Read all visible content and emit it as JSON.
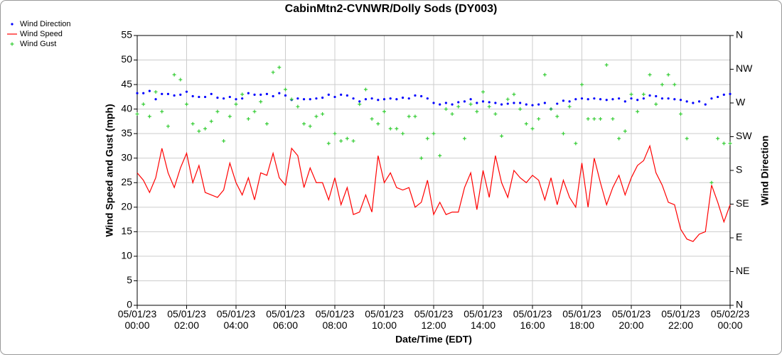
{
  "chart_data": {
    "type": "combo",
    "title": "CabinMtn2-CVNWR/Dolly Sods (DY003)",
    "xlabel": "Date/Time (EDT)",
    "ylabel": "Wind Speed and Gust (mph)",
    "y2label": "Wind Direction",
    "x": [
      "05/01/23 00:00",
      "05/01/23 00:15",
      "05/01/23 00:30",
      "05/01/23 00:45",
      "05/01/23 01:00",
      "05/01/23 01:15",
      "05/01/23 01:30",
      "05/01/23 01:45",
      "05/01/23 02:00",
      "05/01/23 02:15",
      "05/01/23 02:30",
      "05/01/23 02:45",
      "05/01/23 03:00",
      "05/01/23 03:15",
      "05/01/23 03:30",
      "05/01/23 03:45",
      "05/01/23 04:00",
      "05/01/23 04:15",
      "05/01/23 04:30",
      "05/01/23 04:45",
      "05/01/23 05:00",
      "05/01/23 05:15",
      "05/01/23 05:30",
      "05/01/23 05:45",
      "05/01/23 06:00",
      "05/01/23 06:15",
      "05/01/23 06:30",
      "05/01/23 06:45",
      "05/01/23 07:00",
      "05/01/23 07:15",
      "05/01/23 07:30",
      "05/01/23 07:45",
      "05/01/23 08:00",
      "05/01/23 08:15",
      "05/01/23 08:30",
      "05/01/23 08:45",
      "05/01/23 09:00",
      "05/01/23 09:15",
      "05/01/23 09:30",
      "05/01/23 09:45",
      "05/01/23 10:00",
      "05/01/23 10:15",
      "05/01/23 10:30",
      "05/01/23 10:45",
      "05/01/23 11:00",
      "05/01/23 11:15",
      "05/01/23 11:30",
      "05/01/23 11:45",
      "05/01/23 12:00",
      "05/01/23 12:15",
      "05/01/23 12:30",
      "05/01/23 12:45",
      "05/01/23 13:00",
      "05/01/23 13:15",
      "05/01/23 13:30",
      "05/01/23 13:45",
      "05/01/23 14:00",
      "05/01/23 14:15",
      "05/01/23 14:30",
      "05/01/23 14:45",
      "05/01/23 15:00",
      "05/01/23 15:15",
      "05/01/23 15:30",
      "05/01/23 15:45",
      "05/01/23 16:00",
      "05/01/23 16:15",
      "05/01/23 16:30",
      "05/01/23 16:45",
      "05/01/23 17:00",
      "05/01/23 17:15",
      "05/01/23 17:30",
      "05/01/23 17:45",
      "05/01/23 18:00",
      "05/01/23 18:15",
      "05/01/23 18:30",
      "05/01/23 18:45",
      "05/01/23 19:00",
      "05/01/23 19:15",
      "05/01/23 19:30",
      "05/01/23 19:45",
      "05/01/23 20:00",
      "05/01/23 20:15",
      "05/01/23 20:30",
      "05/01/23 20:45",
      "05/01/23 21:00",
      "05/01/23 21:15",
      "05/01/23 21:30",
      "05/01/23 21:45",
      "05/01/23 22:00",
      "05/01/23 22:15",
      "05/01/23 22:30",
      "05/01/23 22:45",
      "05/01/23 23:00",
      "05/01/23 23:15",
      "05/01/23 23:30",
      "05/01/23 23:45",
      "05/02/23 00:00"
    ],
    "series": [
      {
        "name": "Wind Direction",
        "color": "#0000ff",
        "style": "dots",
        "axis": "y2",
        "values": [
          283,
          283,
          286,
          275,
          282,
          282,
          280,
          281,
          285,
          279,
          278,
          278,
          282,
          277,
          276,
          278,
          275,
          276,
          283,
          281,
          281,
          282,
          279,
          283,
          280,
          274,
          276,
          275,
          275,
          276,
          277,
          281,
          278,
          281,
          280,
          276,
          272,
          275,
          276,
          274,
          275,
          276,
          275,
          277,
          276,
          280,
          279,
          276,
          270,
          268,
          270,
          268,
          271,
          272,
          275,
          270,
          272,
          271,
          270,
          268,
          269,
          270,
          270,
          268,
          267,
          268,
          270,
          262,
          269,
          273,
          272,
          275,
          276,
          275,
          276,
          275,
          274,
          275,
          276,
          272,
          276,
          274,
          276,
          280,
          279,
          276,
          276,
          275,
          274,
          272,
          270,
          272,
          268,
          276,
          278,
          281,
          282
        ]
      },
      {
        "name": "Wind Speed",
        "color": "#ff0000",
        "style": "line",
        "values": [
          27,
          25.5,
          23,
          26,
          32,
          27,
          24,
          28,
          31,
          25,
          28.5,
          23,
          22.5,
          22,
          23.5,
          29,
          25,
          22.5,
          26,
          21.5,
          27,
          26.5,
          31,
          26,
          24.5,
          32,
          30.5,
          24,
          28,
          25,
          25,
          21.5,
          26,
          20.5,
          24,
          18.5,
          19,
          22.5,
          19,
          30.5,
          25,
          27,
          24,
          23.5,
          24,
          20,
          21,
          25.5,
          18.5,
          21,
          18.5,
          19,
          19,
          24,
          27,
          19.5,
          27.5,
          22,
          30.5,
          25,
          22,
          27.5,
          26,
          25,
          26.5,
          25.5,
          21.5,
          26,
          20.5,
          25.5,
          22,
          20,
          29,
          20,
          30,
          25,
          20.5,
          24,
          26.5,
          22.5,
          26,
          28.5,
          29.5,
          32.5,
          27,
          24.5,
          21,
          20.5,
          15.5,
          13.5,
          13,
          14.5,
          15,
          24.5,
          21,
          17,
          20.5
        ]
      },
      {
        "name": "Wind Gust",
        "color": "#33cc33",
        "style": "plus",
        "values": [
          39,
          41,
          38.5,
          43.5,
          39.5,
          36.5,
          47,
          46,
          41,
          37,
          35.5,
          36,
          37.5,
          39.5,
          33.5,
          38.5,
          41,
          43,
          38,
          39.5,
          41.5,
          37,
          47.5,
          48.5,
          44,
          42,
          40.5,
          37,
          36.5,
          38.5,
          39,
          33,
          35,
          33.5,
          34,
          33.5,
          41,
          44,
          38,
          37,
          39.5,
          36,
          36,
          35,
          38.5,
          38.5,
          30,
          34,
          35,
          30.5,
          40,
          39,
          40.5,
          34,
          41,
          39.5,
          43.5,
          40.5,
          39,
          34.5,
          42,
          43,
          40,
          37,
          36,
          38,
          47,
          40,
          38.5,
          35,
          40.5,
          33,
          45,
          38,
          38,
          38,
          49,
          38,
          34,
          35.5,
          43,
          39.5,
          43,
          47,
          41,
          45,
          47,
          45,
          39,
          34,
          null,
          null,
          null,
          25,
          34,
          33,
          33
        ]
      }
    ],
    "xlim": [
      "05/01/23 00:00",
      "05/02/23 00:00"
    ],
    "xticks": [
      "05/01/23 00:00",
      "05/01/23 02:00",
      "05/01/23 04:00",
      "05/01/23 06:00",
      "05/01/23 08:00",
      "05/01/23 10:00",
      "05/01/23 12:00",
      "05/01/23 14:00",
      "05/01/23 16:00",
      "05/01/23 18:00",
      "05/01/23 20:00",
      "05/01/23 22:00",
      "05/02/23 00:00"
    ],
    "ylim": [
      0,
      55
    ],
    "yticks": [
      0,
      5,
      10,
      15,
      20,
      25,
      30,
      35,
      40,
      45,
      50,
      55
    ],
    "y2lim": [
      0,
      360
    ],
    "y2ticks": [
      {
        "value": 0,
        "label": "N"
      },
      {
        "value": 45,
        "label": "NE"
      },
      {
        "value": 90,
        "label": "E"
      },
      {
        "value": 135,
        "label": "SE"
      },
      {
        "value": 180,
        "label": "S"
      },
      {
        "value": 225,
        "label": "SW"
      },
      {
        "value": 270,
        "label": "W"
      },
      {
        "value": 315,
        "label": "NW"
      },
      {
        "value": 360,
        "label": "N"
      }
    ],
    "grid": true,
    "legend": "top-left"
  }
}
